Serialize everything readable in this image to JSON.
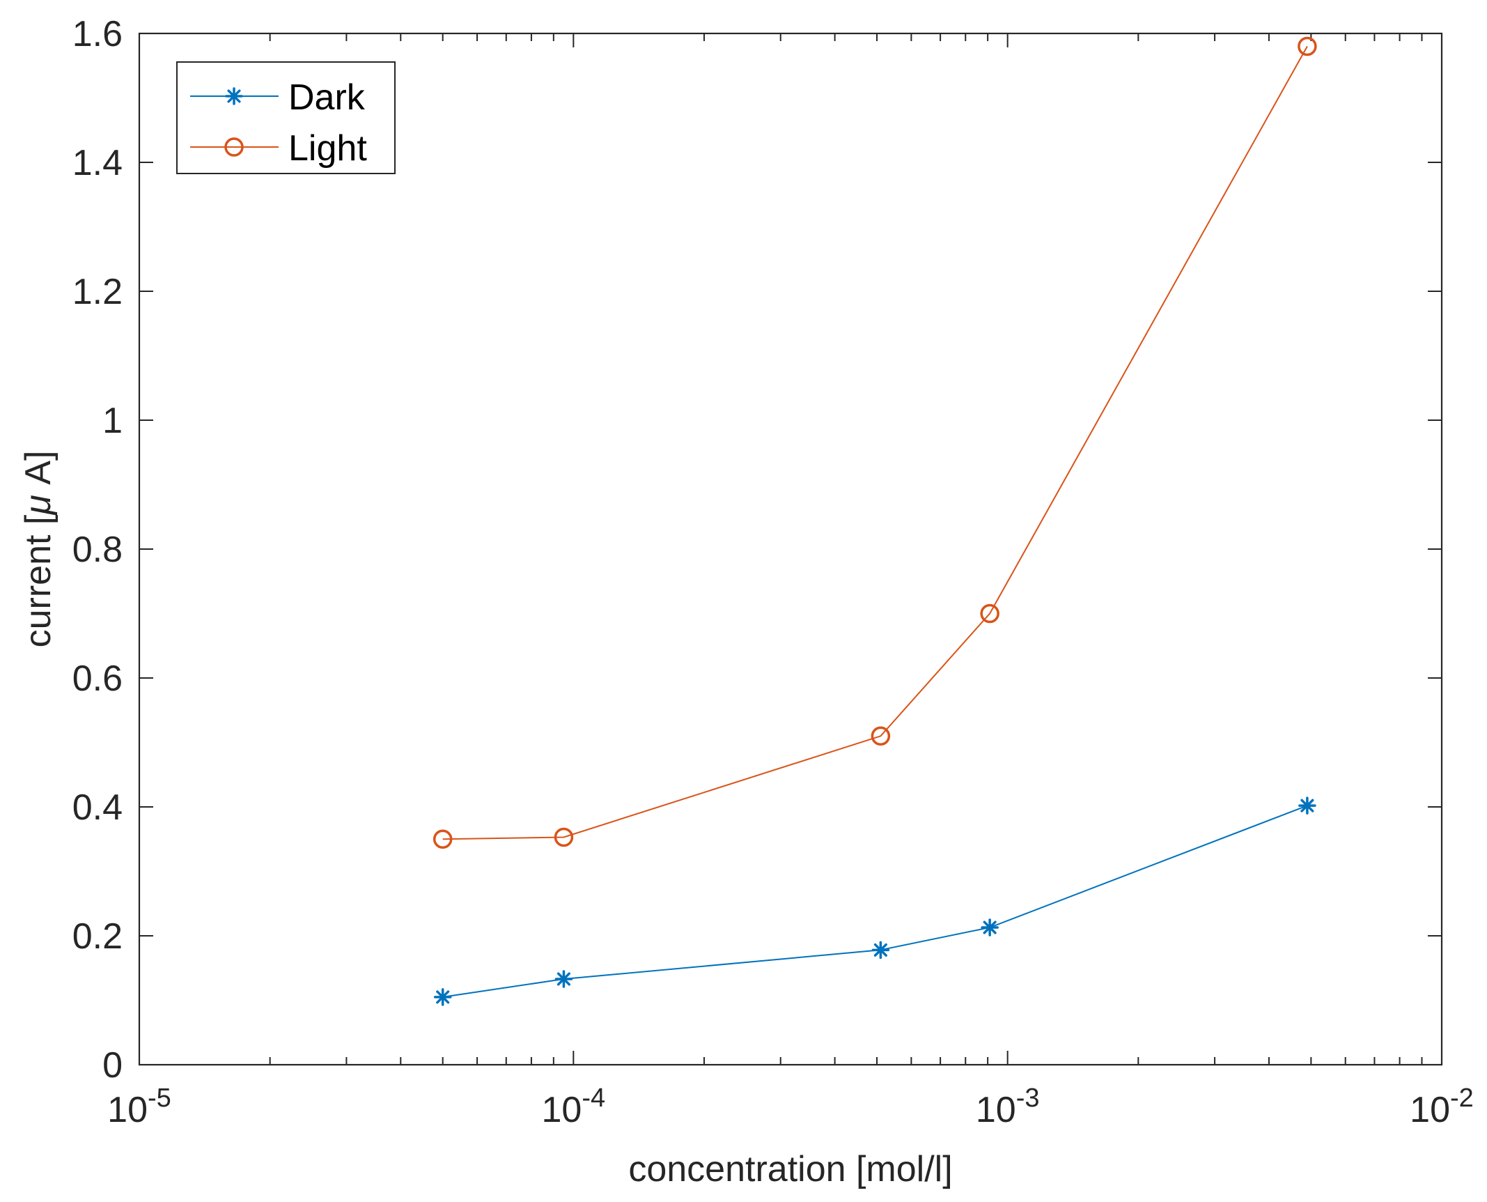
{
  "chart_data": {
    "type": "line",
    "xscale": "log",
    "xlim": [
      1e-05,
      0.01
    ],
    "ylim": [
      0,
      1.6
    ],
    "xlabel": "concentration [mol/l]",
    "ylabel_parts": [
      "current [",
      "μ",
      " A]"
    ],
    "grid": false,
    "legend_position": "top-left",
    "xticks": [
      {
        "value": 1e-05,
        "base": "10",
        "exp": "-5"
      },
      {
        "value": 0.0001,
        "base": "10",
        "exp": "-4"
      },
      {
        "value": 0.001,
        "base": "10",
        "exp": "-3"
      },
      {
        "value": 0.01,
        "base": "10",
        "exp": "-2"
      }
    ],
    "yticks": [
      {
        "value": 0,
        "label": "0"
      },
      {
        "value": 0.2,
        "label": "0.2"
      },
      {
        "value": 0.4,
        "label": "0.4"
      },
      {
        "value": 0.6,
        "label": "0.6"
      },
      {
        "value": 0.8,
        "label": "0.8"
      },
      {
        "value": 1.0,
        "label": "1"
      },
      {
        "value": 1.2,
        "label": "1.2"
      },
      {
        "value": 1.4,
        "label": "1.4"
      },
      {
        "value": 1.6,
        "label": "1.6"
      }
    ],
    "series": [
      {
        "name": "Dark",
        "color": "#0072BD",
        "marker": "asterisk",
        "x": [
          5e-05,
          9.5e-05,
          0.00051,
          0.00091,
          0.0049
        ],
        "y": [
          0.105,
          0.133,
          0.178,
          0.213,
          0.402
        ]
      },
      {
        "name": "Light",
        "color": "#D95319",
        "marker": "circle",
        "x": [
          5e-05,
          9.5e-05,
          0.00051,
          0.00091,
          0.0049
        ],
        "y": [
          0.35,
          0.353,
          0.51,
          0.7,
          1.58
        ]
      }
    ]
  }
}
